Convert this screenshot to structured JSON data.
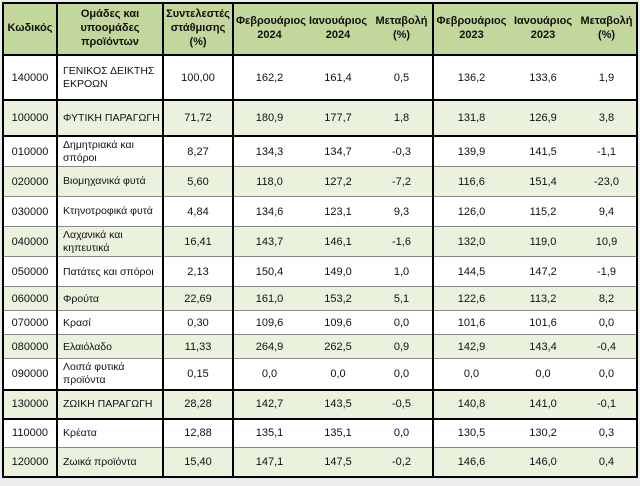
{
  "chart_data": {
    "type": "table",
    "columns": [
      "Κωδικός",
      "Ομάδες και υποομάδες προϊόντων",
      "Συντελεστές στάθμισης (%)",
      "Φεβρουάριος 2024",
      "Ιανουάριος 2024",
      "Μεταβολή (%)",
      "Φεβρουάριος 2023",
      "Ιανουάριος 2023",
      "Μεταβολή (%)"
    ],
    "rows": [
      {
        "code": "140000",
        "name": "ΓΕΝΙΚΟΣ ΔΕΙΚΤΗΣ ΕΚΡΟΩΝ",
        "values": [
          "100,00",
          "162,2",
          "161,4",
          "0,5",
          "136,2",
          "133,6",
          "1,9"
        ],
        "group_end": true
      },
      {
        "code": "100000",
        "name": "ΦΥΤΙΚΗ ΠΑΡΑΓΩΓΗ",
        "values": [
          "71,72",
          "180,9",
          "177,7",
          "1,8",
          "131,8",
          "126,9",
          "3,8"
        ],
        "group_end": true
      },
      {
        "code": "010000",
        "name": "Δημητριακά και σπόροι",
        "values": [
          "8,27",
          "134,3",
          "134,7",
          "-0,3",
          "139,9",
          "141,5",
          "-1,1"
        ],
        "group_end": false
      },
      {
        "code": "020000",
        "name": "Βιομηχανικά φυτά",
        "values": [
          "5,60",
          "118,0",
          "127,2",
          "-7,2",
          "116,6",
          "151,4",
          "-23,0"
        ],
        "group_end": false
      },
      {
        "code": "030000",
        "name": "Κτηνοτροφικά φυτά",
        "values": [
          "4,84",
          "134,6",
          "123,1",
          "9,3",
          "126,0",
          "115,2",
          "9,4"
        ],
        "group_end": false
      },
      {
        "code": "040000",
        "name": "Λαχανικά και κηπευτικά",
        "values": [
          "16,41",
          "143,7",
          "146,1",
          "-1,6",
          "132,0",
          "119,0",
          "10,9"
        ],
        "group_end": false
      },
      {
        "code": "050000",
        "name": "Πατάτες και σπόροι",
        "values": [
          "2,13",
          "150,4",
          "149,0",
          "1,0",
          "144,5",
          "147,2",
          "-1,9"
        ],
        "group_end": false
      },
      {
        "code": "060000",
        "name": "Φρούτα",
        "values": [
          "22,69",
          "161,0",
          "153,2",
          "5,1",
          "122,6",
          "113,2",
          "8,2"
        ],
        "group_end": false
      },
      {
        "code": "070000",
        "name": "Κρασί",
        "values": [
          "0,30",
          "109,6",
          "109,6",
          "0,0",
          "101,6",
          "101,6",
          "0,0"
        ],
        "group_end": false
      },
      {
        "code": "080000",
        "name": "Ελαιόλαδο",
        "values": [
          "11,33",
          "264,9",
          "262,5",
          "0,9",
          "142,9",
          "143,4",
          "-0,4"
        ],
        "group_end": false
      },
      {
        "code": "090000",
        "name": "Λοιπά φυτικά προϊόντα",
        "values": [
          "0,15",
          "0,0",
          "0,0",
          "0,0",
          "0,0",
          "0,0",
          "0,0"
        ],
        "group_end": true
      },
      {
        "code": "130000",
        "name": "ΖΩΙΚΗ ΠΑΡΑΓΩΓΗ",
        "values": [
          "28,28",
          "142,7",
          "143,5",
          "-0,5",
          "140,8",
          "141,0",
          "-0,1"
        ],
        "group_end": true
      },
      {
        "code": "110000",
        "name": "Κρέατα",
        "values": [
          "12,88",
          "135,1",
          "135,1",
          "0,0",
          "130,5",
          "130,2",
          "0,3"
        ],
        "group_end": false
      },
      {
        "code": "120000",
        "name": "Ζωικά προϊόντα",
        "values": [
          "15,40",
          "147,1",
          "147,5",
          "-0,2",
          "146,6",
          "146,0",
          "0,4"
        ],
        "group_end": false
      }
    ],
    "layout": {
      "zebra_striping": true,
      "first_data_row_shaded": false
    },
    "colors": {
      "header_bg": "#c3d69b",
      "row_tint": "#eaf1dd",
      "border": "#000000"
    }
  }
}
